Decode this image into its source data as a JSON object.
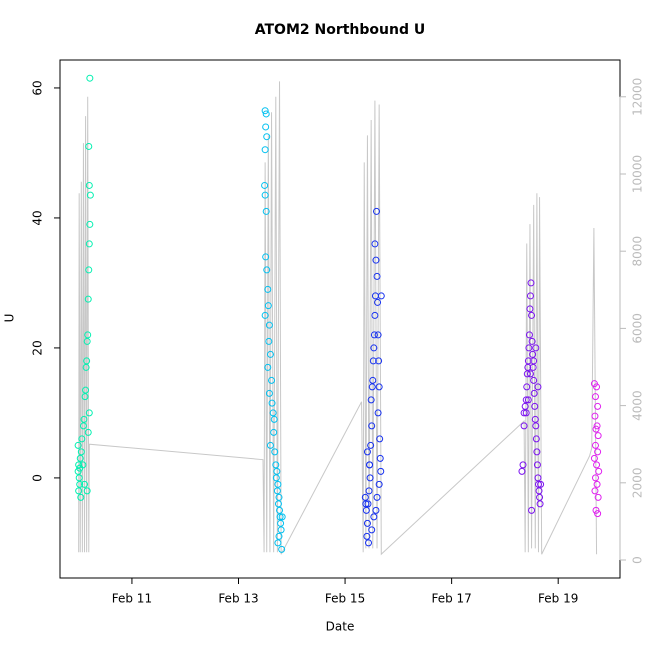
{
  "chart_data": {
    "type": "scatter",
    "title": "ATOM2 Northbound U",
    "x_label": "Date",
    "y_label": "U",
    "xlim": [
      9.65,
      20.16
    ],
    "xticks": [
      {
        "value": 11,
        "label": "Feb 11"
      },
      {
        "value": 13,
        "label": "Feb 13"
      },
      {
        "value": 15,
        "label": "Feb 15"
      },
      {
        "value": 17,
        "label": "Feb 17"
      },
      {
        "value": 19,
        "label": "Feb 19"
      }
    ],
    "ylim": [
      -15.4,
      64.3
    ],
    "yticks": [
      0,
      20,
      40,
      60
    ],
    "y2lim": [
      -466,
      12953
    ],
    "y2ticks": [
      0,
      2000,
      4000,
      6000,
      8000,
      10000,
      12000
    ],
    "y2color": "#bbbbbb",
    "series": [
      {
        "color": "#00f0b0",
        "x": [
          9.99,
          10.0,
          10.01,
          10.02,
          10.03,
          9.99,
          10.0,
          10.02,
          10.04,
          10.05,
          10.06,
          10.08,
          10.09,
          10.1,
          10.11,
          10.12,
          10.13,
          10.14,
          10.15,
          10.16,
          10.17,
          10.18,
          10.19,
          10.2,
          10.21,
          10.22,
          10.2,
          10.19,
          10.21,
          10.2,
          10.18,
          10.16
        ],
        "values": [
          1,
          2,
          0,
          -1,
          3,
          5,
          -2,
          1.5,
          -3,
          4,
          6,
          2,
          8,
          9,
          -1,
          12.5,
          13.5,
          17,
          18,
          21,
          22,
          27.5,
          32,
          36,
          39,
          43.5,
          45,
          51,
          61.5,
          10,
          7,
          -2
        ]
      },
      {
        "color": "#00c0f0",
        "x": [
          13.5,
          13.52,
          13.51,
          13.53,
          13.5,
          13.49,
          13.5,
          13.52,
          13.51,
          13.53,
          13.55,
          13.56,
          13.5,
          13.58,
          13.57,
          13.6,
          13.55,
          13.62,
          13.58,
          13.63,
          13.65,
          13.67,
          13.66,
          13.6,
          13.68,
          13.7,
          13.72,
          13.71,
          13.74,
          13.73,
          13.76,
          13.75,
          13.77,
          13.78,
          13.79,
          13.8,
          13.76,
          13.74,
          13.81,
          13.82
        ],
        "values": [
          56.5,
          56,
          54,
          52.5,
          50.5,
          45,
          43.5,
          41,
          34,
          32,
          29,
          26.5,
          25,
          23.5,
          21,
          19,
          17,
          15,
          13,
          11.5,
          10,
          9,
          7,
          5,
          4,
          2,
          1,
          0,
          -1,
          -2,
          -3,
          -4,
          -5,
          -6,
          -7,
          -8,
          -9,
          -10,
          -11,
          -6
        ]
      },
      {
        "color": "#1530f0",
        "x": [
          15.38,
          15.4,
          15.42,
          15.41,
          15.44,
          15.43,
          15.45,
          15.47,
          15.46,
          15.48,
          15.5,
          15.49,
          15.52,
          15.51,
          15.53,
          15.54,
          15.55,
          15.56,
          15.57,
          15.58,
          15.56,
          15.59,
          15.6,
          15.61,
          15.62,
          15.63,
          15.64,
          15.62,
          15.65,
          15.66,
          15.67,
          15.64,
          15.6,
          15.58,
          15.54,
          15.5,
          15.46,
          15.42,
          15.39,
          15.68
        ],
        "values": [
          -3,
          -5,
          -7,
          -9,
          -10,
          -4,
          -2,
          0,
          2,
          5,
          8,
          12,
          15,
          14,
          18,
          20,
          22,
          25,
          28,
          33.5,
          36,
          41,
          31,
          27,
          22,
          18,
          14,
          10,
          6,
          3,
          1,
          -1,
          -3,
          -5,
          -6,
          -8,
          2,
          4,
          -4,
          28
        ]
      },
      {
        "color": "#7a10f0",
        "x": [
          18.32,
          18.34,
          18.36,
          18.38,
          18.4,
          18.41,
          18.42,
          18.43,
          18.44,
          18.45,
          18.46,
          18.47,
          18.48,
          18.49,
          18.5,
          18.51,
          18.52,
          18.53,
          18.54,
          18.55,
          18.56,
          18.57,
          18.58,
          18.59,
          18.6,
          18.61,
          18.62,
          18.63,
          18.64,
          18.65,
          18.66,
          18.5,
          18.48,
          18.54,
          18.58,
          18.62,
          18.44,
          18.4,
          18.36,
          18.67
        ],
        "values": [
          1,
          2,
          10,
          11,
          12,
          14,
          16,
          17,
          18,
          20,
          22,
          26,
          28,
          30,
          25,
          21,
          19,
          17,
          15,
          13,
          11,
          9,
          8,
          6,
          4,
          2,
          0,
          -1,
          -2,
          -3,
          -4,
          -5,
          16,
          18,
          20,
          14,
          12,
          10,
          8,
          -1
        ]
      },
      {
        "color": "#e020f0",
        "x": [
          19.68,
          19.72,
          19.7,
          19.74,
          19.69,
          19.73,
          19.71,
          19.75,
          19.7,
          19.74,
          19.68,
          19.72,
          19.76,
          19.7,
          19.73,
          19.69,
          19.75,
          19.71,
          19.74
        ],
        "values": [
          14.5,
          14,
          12.5,
          11,
          9.5,
          8,
          7.5,
          6.5,
          5,
          4,
          3,
          2,
          1,
          0,
          -1,
          -2,
          -3,
          -5,
          -5.5
        ]
      },
      {
        "type": "line",
        "axis": "y2",
        "color": "#c8c8c8",
        "x": [
          10.0,
          10.01,
          10.03,
          10.05,
          10.07,
          10.09,
          10.11,
          10.13,
          10.15,
          10.17,
          10.19,
          10.2,
          13.46,
          13.48,
          13.5,
          13.53,
          13.56,
          13.59,
          13.62,
          13.66,
          13.7,
          13.73,
          13.77,
          13.8,
          15.31,
          15.34,
          15.36,
          15.39,
          15.42,
          15.45,
          15.49,
          15.52,
          15.56,
          15.6,
          15.64,
          15.68,
          18.36,
          18.38,
          18.41,
          18.44,
          18.47,
          18.5,
          18.54,
          18.57,
          18.6,
          18.63,
          18.65,
          18.69,
          19.59,
          19.63,
          19.67,
          19.72
        ],
        "values": [
          200,
          9500,
          200,
          9800,
          200,
          10800,
          200,
          11500,
          200,
          12000,
          200,
          3000,
          2600,
          200,
          10300,
          200,
          11000,
          200,
          11600,
          200,
          12000,
          200,
          12400,
          150,
          4100,
          200,
          10300,
          300,
          11000,
          300,
          11400,
          300,
          11900,
          300,
          11800,
          150,
          3600,
          200,
          8200,
          200,
          8700,
          300,
          9200,
          300,
          9500,
          200,
          9400,
          150,
          2700,
          2900,
          8600,
          150
        ]
      }
    ]
  }
}
